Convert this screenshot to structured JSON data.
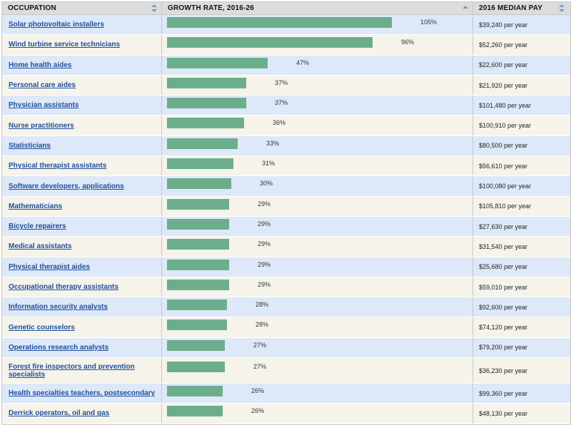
{
  "headers": {
    "occupation": "OCCUPATION",
    "growth": "GROWTH RATE, 2016-26",
    "pay": "2016 MEDIAN PAY"
  },
  "colors": {
    "bar": "#6cae8b",
    "link": "#1f4f9c",
    "row_odd": "#dde8f8",
    "row_even": "#f5f3ea"
  },
  "rows": [
    {
      "occupation": "Solar photovoltaic installers",
      "growth": 105,
      "growth_label": "105%",
      "pay": "$39,240 per year"
    },
    {
      "occupation": "Wind turbine service technicians",
      "growth": 96,
      "growth_label": "96%",
      "pay": "$52,260 per year"
    },
    {
      "occupation": "Home health aides",
      "growth": 47,
      "growth_label": "47%",
      "pay": "$22,600 per year"
    },
    {
      "occupation": "Personal care aides",
      "growth": 37,
      "growth_label": "37%",
      "pay": "$21,920 per year"
    },
    {
      "occupation": "Physician assistants",
      "growth": 37,
      "growth_label": "37%",
      "pay": "$101,480 per year"
    },
    {
      "occupation": "Nurse practitioners",
      "growth": 36,
      "growth_label": "36%",
      "pay": "$100,910 per year"
    },
    {
      "occupation": "Statisticians",
      "growth": 33,
      "growth_label": "33%",
      "pay": "$80,500 per year"
    },
    {
      "occupation": "Physical therapist assistants",
      "growth": 31,
      "growth_label": "31%",
      "pay": "$56,610 per year"
    },
    {
      "occupation": "Software developers, applications",
      "growth": 30,
      "growth_label": "30%",
      "pay": "$100,080 per year"
    },
    {
      "occupation": "Mathematicians",
      "growth": 29,
      "growth_label": "29%",
      "pay": "$105,810 per year"
    },
    {
      "occupation": "Bicycle repairers",
      "growth": 29,
      "growth_label": "29%",
      "pay": "$27,630 per year"
    },
    {
      "occupation": "Medical assistants",
      "growth": 29,
      "growth_label": "29%",
      "pay": "$31,540 per year"
    },
    {
      "occupation": "Physical therapist aides",
      "growth": 29,
      "growth_label": "29%",
      "pay": "$25,680 per year"
    },
    {
      "occupation": "Occupational therapy assistants",
      "growth": 29,
      "growth_label": "29%",
      "pay": "$59,010 per year"
    },
    {
      "occupation": "Information security analysts",
      "growth": 28,
      "growth_label": "28%",
      "pay": "$92,600 per year"
    },
    {
      "occupation": "Genetic counselors",
      "growth": 28,
      "growth_label": "28%",
      "pay": "$74,120 per year"
    },
    {
      "occupation": "Operations research analysts",
      "growth": 27,
      "growth_label": "27%",
      "pay": "$79,200 per year"
    },
    {
      "occupation": "Forest fire inspectors and prevention specialists",
      "growth": 27,
      "growth_label": "27%",
      "pay": "$36,230 per year"
    },
    {
      "occupation": "Health specialties teachers, postsecondary",
      "growth": 26,
      "growth_label": "26%",
      "pay": "$99,360 per year"
    },
    {
      "occupation": "Derrick operators, oil and gas",
      "growth": 26,
      "growth_label": "26%",
      "pay": "$48,130 per year"
    }
  ]
}
